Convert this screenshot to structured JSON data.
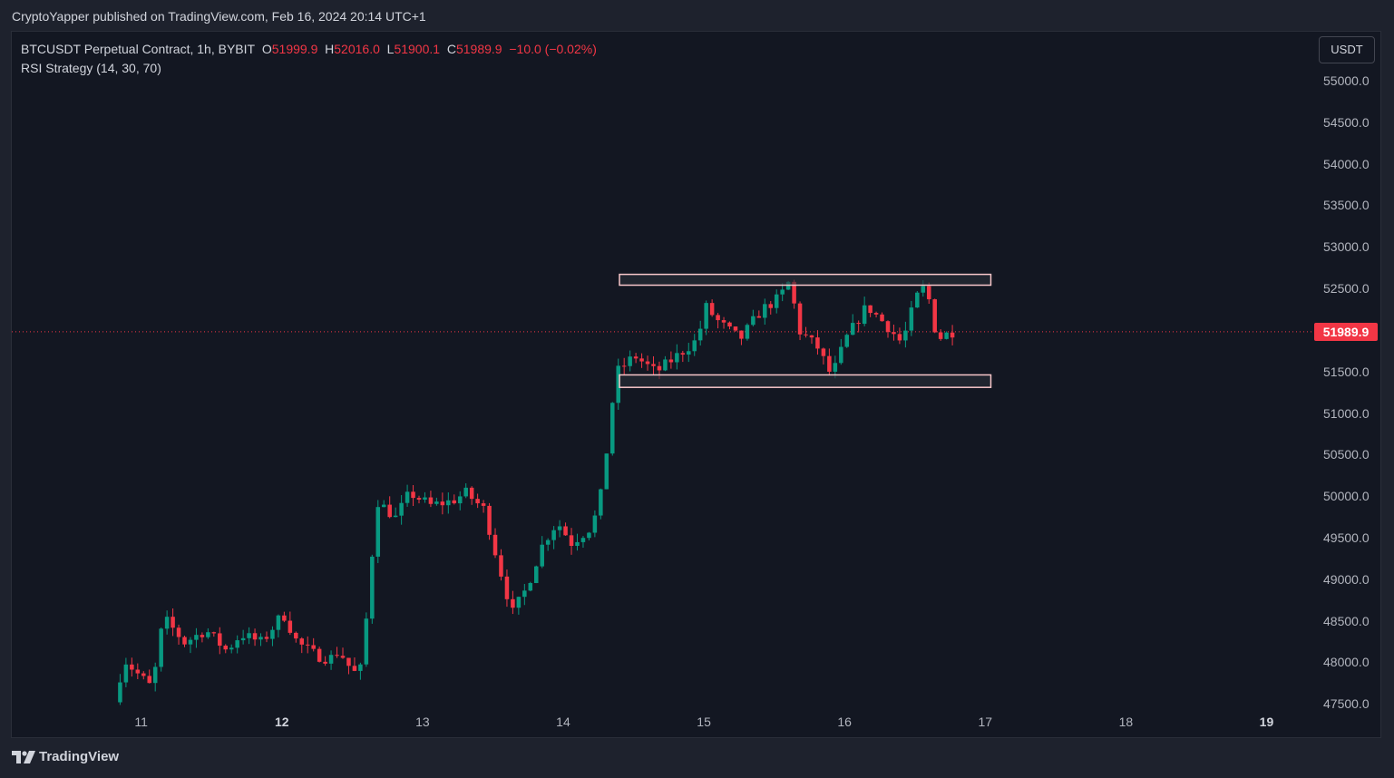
{
  "header": {
    "published": "CryptoYapper published on TradingView.com, Feb 16, 2024 20:14 UTC+1"
  },
  "legend": {
    "symbol": "BTCUSDT Perpetual Contract, 1h, BYBIT",
    "o_label": "O",
    "o_value": "51999.9",
    "h_label": "H",
    "h_value": "52016.0",
    "l_label": "L",
    "l_value": "51900.1",
    "c_label": "C",
    "c_value": "51989.9",
    "change": "−10.0 (−0.02%)",
    "indicator": "RSI Strategy (14, 30, 70)"
  },
  "currency_button": "USDT",
  "footer": {
    "brand": "TradingView"
  },
  "colors": {
    "up": "#089981",
    "down": "#f23645",
    "background": "#131722",
    "zone_border": "#f7c6c9",
    "zone_fill": "#2a2e39"
  },
  "chart_data": {
    "type": "candlestick",
    "symbol": "BTCUSDT",
    "interval": "1h",
    "y_axis": {
      "ticks": [
        "55000.0",
        "54500.0",
        "54000.0",
        "53500.0",
        "53000.0",
        "52500.0",
        "51500.0",
        "51000.0",
        "50500.0",
        "50000.0",
        "49500.0",
        "49000.0",
        "48500.0",
        "48000.0",
        "47500.0"
      ],
      "range": [
        47470,
        55600
      ]
    },
    "x_axis": {
      "ticks": [
        {
          "label": "11",
          "day": 11,
          "bold": false
        },
        {
          "label": "12",
          "day": 12,
          "bold": true
        },
        {
          "label": "13",
          "day": 13,
          "bold": false
        },
        {
          "label": "14",
          "day": 14,
          "bold": false
        },
        {
          "label": "15",
          "day": 15,
          "bold": false
        },
        {
          "label": "16",
          "day": 16,
          "bold": false
        },
        {
          "label": "17",
          "day": 17,
          "bold": false
        },
        {
          "label": "18",
          "day": 18,
          "bold": false
        },
        {
          "label": "19",
          "day": 19,
          "bold": true
        }
      ],
      "range_days": [
        10.08,
        19.3
      ]
    },
    "last_price": {
      "value": 51989.9,
      "label": "51989.9"
    },
    "zones": [
      {
        "name": "resistance",
        "x_start_day": 14.4,
        "x_end_day": 17.04,
        "y_low": 52550,
        "y_high": 52680
      },
      {
        "name": "support",
        "x_start_day": 14.4,
        "x_end_day": 17.04,
        "y_low": 51320,
        "y_high": 51470
      }
    ],
    "waypoints": [
      [
        10.85,
        47530
      ],
      [
        10.92,
        48050
      ],
      [
        11.0,
        47900
      ],
      [
        11.12,
        47700
      ],
      [
        11.2,
        48550
      ],
      [
        11.35,
        48250
      ],
      [
        11.5,
        48400
      ],
      [
        11.65,
        48150
      ],
      [
        11.75,
        48350
      ],
      [
        11.9,
        48250
      ],
      [
        12.05,
        48600
      ],
      [
        12.15,
        48250
      ],
      [
        12.28,
        48100
      ],
      [
        12.38,
        48050
      ],
      [
        12.45,
        48150
      ],
      [
        12.55,
        47880
      ],
      [
        12.62,
        47950
      ],
      [
        12.65,
        48750
      ],
      [
        12.72,
        49950
      ],
      [
        12.85,
        49750
      ],
      [
        12.95,
        50050
      ],
      [
        13.1,
        49900
      ],
      [
        13.25,
        49950
      ],
      [
        13.35,
        50050
      ],
      [
        13.48,
        49850
      ],
      [
        13.58,
        49200
      ],
      [
        13.68,
        48600
      ],
      [
        13.78,
        48900
      ],
      [
        13.9,
        49450
      ],
      [
        14.0,
        49700
      ],
      [
        14.1,
        49450
      ],
      [
        14.25,
        49650
      ],
      [
        14.32,
        50100
      ],
      [
        14.38,
        51000
      ],
      [
        14.42,
        51500
      ],
      [
        14.55,
        51700
      ],
      [
        14.7,
        51500
      ],
      [
        14.85,
        51700
      ],
      [
        15.0,
        51900
      ],
      [
        15.05,
        52300
      ],
      [
        15.15,
        52100
      ],
      [
        15.3,
        51900
      ],
      [
        15.45,
        52250
      ],
      [
        15.58,
        52400
      ],
      [
        15.65,
        52600
      ],
      [
        15.72,
        52000
      ],
      [
        15.85,
        51800
      ],
      [
        15.95,
        51450
      ],
      [
        16.05,
        51900
      ],
      [
        16.2,
        52300
      ],
      [
        16.35,
        52050
      ],
      [
        16.45,
        51850
      ],
      [
        16.55,
        52400
      ],
      [
        16.62,
        52550
      ],
      [
        16.7,
        51900
      ],
      [
        16.8,
        51990
      ]
    ]
  }
}
